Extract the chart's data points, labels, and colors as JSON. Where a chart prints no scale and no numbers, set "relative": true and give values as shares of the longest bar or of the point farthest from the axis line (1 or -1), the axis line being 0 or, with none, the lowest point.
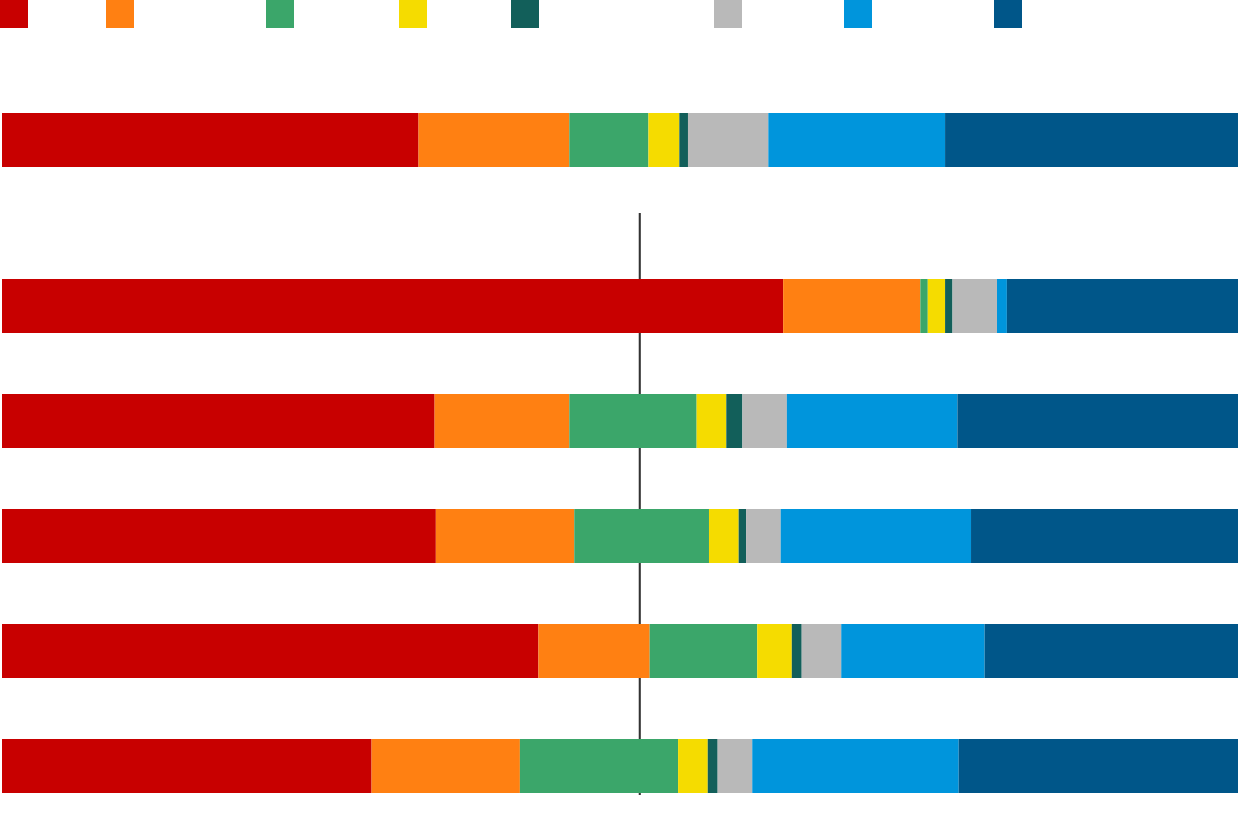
{
  "chart_data": [
    {
      "type": "bar",
      "orientation": "horizontal",
      "stacked": true,
      "relative": true,
      "categories": [
        null
      ],
      "series": [
        {
          "color": "#c80000",
          "values": [
            0.337
          ]
        },
        {
          "color": "#ff8012",
          "values": [
            0.122
          ]
        },
        {
          "color": "#3ba66a",
          "values": [
            0.064
          ]
        },
        {
          "color": "#f5dc00",
          "values": [
            0.025
          ]
        },
        {
          "color": "#125f5a",
          "values": [
            0.007
          ]
        },
        {
          "color": "#b9b9b9",
          "values": [
            0.065
          ]
        },
        {
          "color": "#0095dc",
          "values": [
            0.143
          ]
        },
        {
          "color": "#005689",
          "values": [
            0.237
          ]
        }
      ]
    },
    {
      "type": "bar",
      "orientation": "horizontal",
      "stacked": true,
      "relative": true,
      "categories": [
        null,
        null,
        null,
        null,
        null
      ],
      "ref_lines": [
        {
          "axis": "x",
          "value": 0.516,
          "color": "#333333"
        }
      ],
      "series": [
        {
          "color": "#c80000",
          "values": [
            0.632,
            0.35,
            0.351,
            0.434,
            0.299
          ]
        },
        {
          "color": "#ff8012",
          "values": [
            0.111,
            0.109,
            0.112,
            0.09,
            0.12
          ]
        },
        {
          "color": "#3ba66a",
          "values": [
            0.006,
            0.103,
            0.109,
            0.087,
            0.128
          ]
        },
        {
          "color": "#f5dc00",
          "values": [
            0.014,
            0.024,
            0.024,
            0.028,
            0.024
          ]
        },
        {
          "color": "#125f5a",
          "values": [
            0.006,
            0.013,
            0.006,
            0.008,
            0.008
          ]
        },
        {
          "color": "#b9b9b9",
          "values": [
            0.036,
            0.036,
            0.028,
            0.032,
            0.028
          ]
        },
        {
          "color": "#0095dc",
          "values": [
            0.008,
            0.138,
            0.154,
            0.116,
            0.167
          ]
        },
        {
          "color": "#005689",
          "values": [
            0.187,
            0.227,
            0.216,
            0.205,
            0.226
          ]
        }
      ]
    }
  ]
}
